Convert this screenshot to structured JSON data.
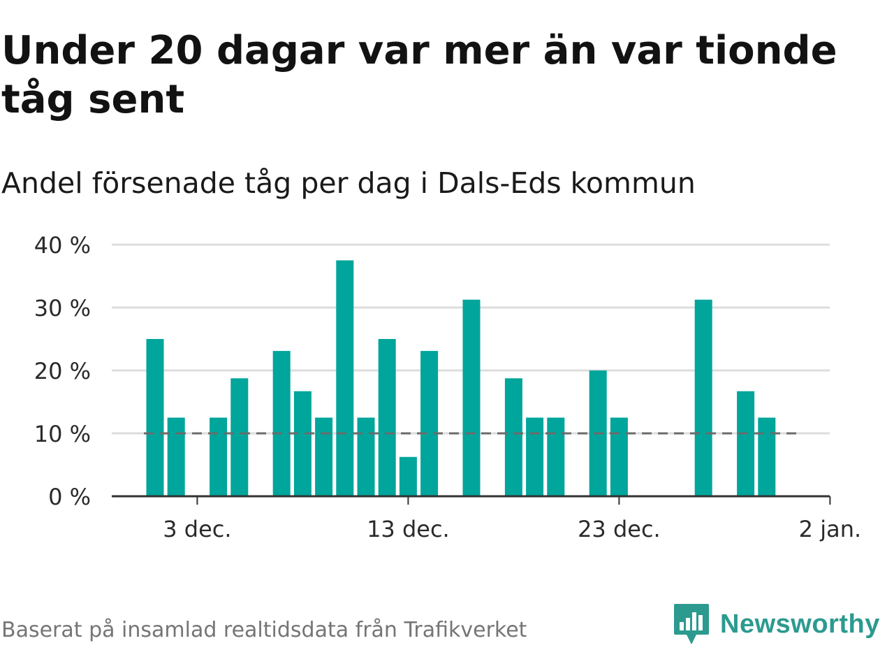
{
  "title": "Under 20 dagar var mer än var tionde tåg sent",
  "subtitle": "Andel försenade tåg per dag i Dals-Eds kommun",
  "footer": "Baserat på insamlad realtidsdata från Trafikverket",
  "brand": {
    "name": "Newsworthy",
    "icon": "newsworthy-logo-icon",
    "color": "#2c9a8f"
  },
  "colors": {
    "bar": "#00a59b",
    "reference": "#6b6b6b",
    "grid": "#dddddd",
    "axis": "#333333"
  },
  "chart_data": {
    "type": "bar",
    "x_type": "date",
    "x": [
      "2019-12-01",
      "2019-12-02",
      "2019-12-03",
      "2019-12-04",
      "2019-12-05",
      "2019-12-06",
      "2019-12-07",
      "2019-12-08",
      "2019-12-09",
      "2019-12-10",
      "2019-12-11",
      "2019-12-12",
      "2019-12-13",
      "2019-12-14",
      "2019-12-15",
      "2019-12-16",
      "2019-12-17",
      "2019-12-18",
      "2019-12-19",
      "2019-12-20",
      "2019-12-21",
      "2019-12-22",
      "2019-12-23",
      "2019-12-24",
      "2019-12-25",
      "2019-12-26",
      "2019-12-27",
      "2019-12-28",
      "2019-12-29",
      "2019-12-30",
      "2019-12-31",
      "2020-01-01"
    ],
    "values": [
      25,
      12.5,
      0,
      12.5,
      18.75,
      0,
      23.1,
      16.7,
      12.5,
      37.5,
      12.5,
      25,
      6.25,
      23.1,
      0,
      31.25,
      0,
      18.75,
      12.5,
      12.5,
      0,
      20,
      12.5,
      0,
      0,
      0,
      31.25,
      0,
      16.7,
      12.5,
      0,
      0
    ],
    "reference_line": {
      "value": 10,
      "style": "dashed"
    },
    "ylim": [
      0,
      40
    ],
    "yticks": [
      0,
      10,
      20,
      30,
      40
    ],
    "ytick_labels": [
      "0 %",
      "10 %",
      "20 %",
      "30 %",
      "40 %"
    ],
    "xticks": [
      "2019-12-03",
      "2019-12-13",
      "2019-12-23",
      "2020-01-02"
    ],
    "xtick_labels": [
      "3 dec.",
      "13 dec.",
      "23 dec.",
      "2 jan."
    ],
    "grid": true,
    "legend": "none"
  }
}
